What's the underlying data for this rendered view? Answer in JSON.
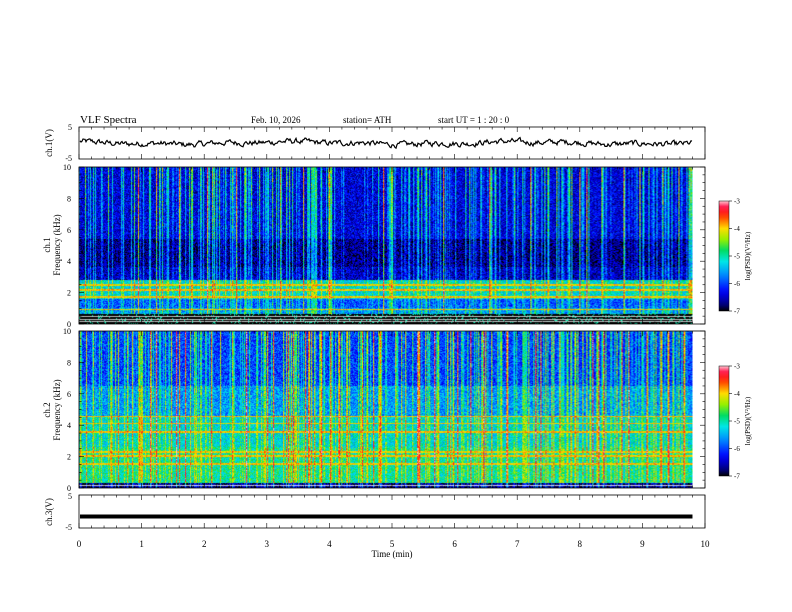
{
  "header": {
    "title": "VLF  Spectra",
    "date": "Feb. 10, 2026",
    "station": "station= ATH",
    "start_ut": "start  UT  =   1 : 20 : 0"
  },
  "chart_data": [
    {
      "type": "line",
      "name": "ch1-waveform",
      "ylabel": "ch.1(V)",
      "ylim": [
        -5,
        5
      ],
      "yticks": [
        "5",
        "-5"
      ],
      "xlim": [
        0,
        10
      ],
      "note": "noisy waveform centered near 0 V, data ends at ~9.8 min",
      "x_end": 9.8,
      "amplitude_v": 0.8
    },
    {
      "type": "heatmap",
      "name": "ch1-spectrogram",
      "ylabel": "ch.1\nFrequency (kHz)",
      "ylabel_lines": [
        "ch.1",
        "Frequency (kHz)"
      ],
      "ylim": [
        0,
        10
      ],
      "yticks": [
        "0",
        "2",
        "4",
        "6",
        "8",
        "10"
      ],
      "xlim": [
        0,
        10
      ],
      "x_end": 9.8,
      "colorbar": {
        "label": "log(PSD)(V²/Hz)",
        "range": [
          -7,
          -3
        ],
        "ticks": [
          "-3",
          "-4",
          "-5",
          "-6",
          "-7"
        ]
      },
      "bands": [
        {
          "f0": 0.0,
          "f1": 0.6,
          "level": -7.0
        },
        {
          "f0": 0.6,
          "f1": 1.0,
          "level": -5.6
        },
        {
          "f0": 1.0,
          "f1": 1.6,
          "level": -5.9
        },
        {
          "f0": 1.6,
          "f1": 2.8,
          "level": -5.2
        },
        {
          "f0": 2.8,
          "f1": 3.6,
          "level": -6.5
        },
        {
          "f0": 3.6,
          "f1": 5.4,
          "level": -6.7
        },
        {
          "f0": 5.4,
          "f1": 10.0,
          "level": -6.4
        }
      ],
      "lines_khz": [
        2.15,
        0.9,
        1.7,
        2.45
      ],
      "sferic_density": 0.32
    },
    {
      "type": "heatmap",
      "name": "ch2-spectrogram",
      "ylabel": "ch.2\nFrequency (kHz)",
      "ylabel_lines": [
        "ch.2",
        "Frequency (kHz)"
      ],
      "ylim": [
        0,
        10
      ],
      "yticks": [
        "0",
        "2",
        "4",
        "6",
        "8",
        "10"
      ],
      "xlim": [
        0,
        10
      ],
      "x_end": 9.8,
      "colorbar": {
        "label": "log(PSD)(V²/Hz)",
        "range": [
          -7,
          -3
        ],
        "ticks": [
          "-3",
          "-4",
          "-5",
          "-6",
          "-7"
        ]
      },
      "bands": [
        {
          "f0": 0.0,
          "f1": 0.3,
          "level": -6.8
        },
        {
          "f0": 0.3,
          "f1": 2.6,
          "level": -5.0
        },
        {
          "f0": 2.6,
          "f1": 4.6,
          "level": -5.2
        },
        {
          "f0": 4.6,
          "f1": 6.5,
          "level": -5.6
        },
        {
          "f0": 6.5,
          "f1": 10.0,
          "level": -6.0
        }
      ],
      "lines_khz": [
        3.55,
        4.55,
        2.0,
        1.5,
        2.3,
        4.1
      ],
      "sferic_density": 0.38
    },
    {
      "type": "line",
      "name": "ch3-waveform",
      "ylabel": "ch.3(V)",
      "ylim": [
        -5,
        5
      ],
      "yticks": [
        "5",
        "-5"
      ],
      "xlim": [
        0,
        10
      ],
      "note": "flat thick line near -1.5 V",
      "x_end": 9.8,
      "level_v": -1.5
    }
  ],
  "xaxis": {
    "label": "Time  (min)",
    "ticks": [
      "0",
      "1",
      "2",
      "3",
      "4",
      "5",
      "6",
      "7",
      "8",
      "9",
      "10"
    ],
    "range": [
      0,
      10
    ]
  }
}
